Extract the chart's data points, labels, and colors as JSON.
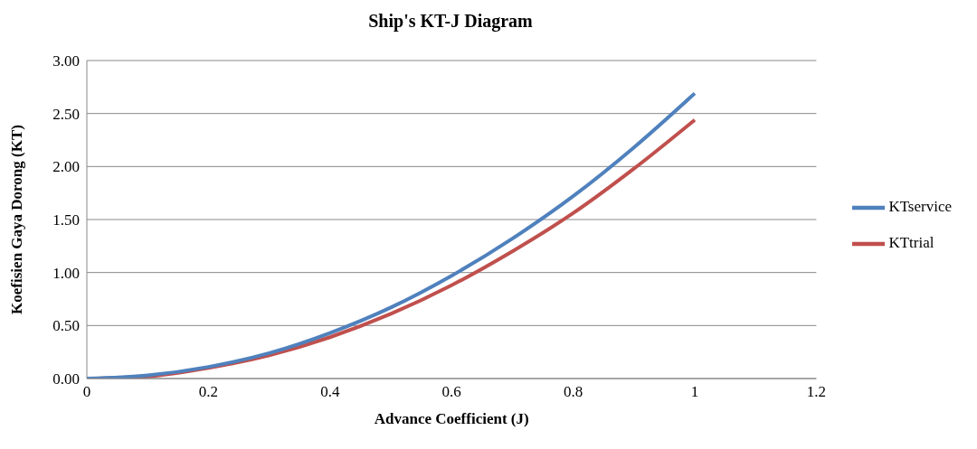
{
  "chart_data": {
    "type": "line",
    "title": "Ship's KT-J Diagram",
    "xlabel": "Advance Coefficient (J)",
    "ylabel": "Koefisien Gaya Dorong (KT)",
    "x": [
      0,
      0.1,
      0.2,
      0.3,
      0.4,
      0.5,
      0.6,
      0.7,
      0.8,
      0.9,
      1
    ],
    "series": [
      {
        "name": "KTtrial",
        "color": "#c0504d",
        "values": [
          0,
          0.02,
          0.1,
          0.22,
          0.39,
          0.61,
          0.88,
          1.2,
          1.56,
          1.98,
          2.44
        ]
      },
      {
        "name": "KTservice",
        "color": "#4f81bd",
        "values": [
          0,
          0.03,
          0.11,
          0.24,
          0.43,
          0.67,
          0.97,
          1.32,
          1.72,
          2.18,
          2.69
        ]
      }
    ],
    "xlim": [
      0,
      1.2
    ],
    "xticks": [
      0,
      0.2,
      0.4,
      0.6,
      0.8,
      1,
      1.2
    ],
    "ylim": [
      0,
      3
    ],
    "yticks": [
      {
        "value": 0,
        "label": "0.00"
      },
      {
        "value": 0.5,
        "label": "0.50"
      },
      {
        "value": 1,
        "label": "1.00"
      },
      {
        "value": 1.5,
        "label": "1.50"
      },
      {
        "value": 2,
        "label": "2.00"
      },
      {
        "value": 2.5,
        "label": "2.50"
      },
      {
        "value": 3,
        "label": "3.00"
      }
    ],
    "grid": "y",
    "legend": "right",
    "marker": "none",
    "line_style": "solid"
  }
}
